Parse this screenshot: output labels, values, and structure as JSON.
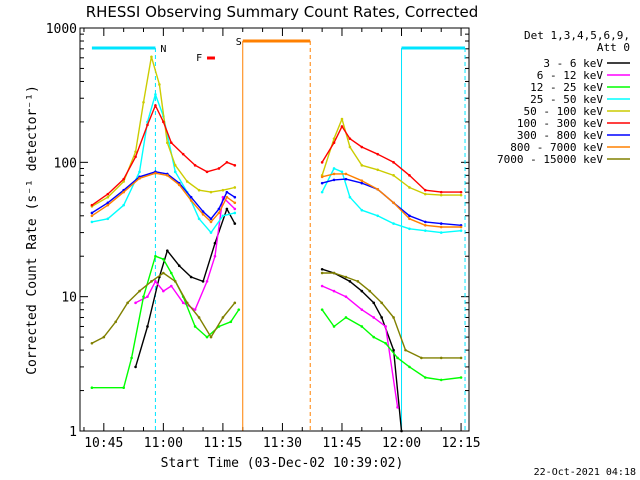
{
  "chart_data": {
    "type": "line",
    "title": "RHESSI Observing Summary Count Rates, Corrected",
    "xlabel": "Start Time (03-Dec-02 10:39:02)",
    "ylabel": "Corrected Count Rate (s⁻¹ detector⁻¹)",
    "yscale": "log",
    "ylim": [
      1,
      1000
    ],
    "xlim": [
      "10:39",
      "12:17"
    ],
    "x_ticks": [
      "10:45",
      "11:00",
      "11:15",
      "11:30",
      "11:45",
      "12:00",
      "12:15"
    ],
    "y_ticks": [
      "1",
      "10",
      "100",
      "1000"
    ],
    "legend_header": [
      "Det 1,3,4,5,6,9,",
      "Att 0"
    ],
    "legend_position": "right",
    "timestamp": "22-Oct-2021 04:18",
    "annotations": {
      "night": "N",
      "saa": "S",
      "flare": "F"
    },
    "colors": {
      "night_bar": "#00e5ff",
      "saa_bar": "#ff8000",
      "flare_mark": "#ff0000",
      "dash_cyan": "#00e5ff",
      "dash_orange": "#ff8000"
    },
    "gaps": [
      [
        "11:19",
        "11:38"
      ]
    ],
    "series": [
      {
        "name": "3 - 6 keV",
        "color": "#000000",
        "x": [
          "10:53",
          "10:56",
          "10:59",
          "11:01",
          "11:04",
          "11:07",
          "11:10",
          "11:13",
          "11:16",
          "11:18",
          "11:40",
          "11:43",
          "11:47",
          "11:50",
          "11:53",
          "11:55",
          "11:58",
          "12:00"
        ],
        "y": [
          3,
          6,
          14,
          22,
          17,
          14,
          13,
          25,
          45,
          35,
          16,
          15,
          13,
          11,
          9,
          7,
          4,
          1
        ]
      },
      {
        "name": "6 - 12 keV",
        "color": "#ff00ff",
        "x": [
          "10:53",
          "10:56",
          "10:58",
          "11:00",
          "11:02",
          "11:05",
          "11:08",
          "11:11",
          "11:13",
          "11:15",
          "11:18",
          "11:40",
          "11:43",
          "11:46",
          "11:50",
          "11:53",
          "11:56",
          "11:59"
        ],
        "y": [
          9,
          10,
          13,
          11,
          12,
          9,
          8,
          13,
          20,
          55,
          45,
          12,
          11,
          10,
          8,
          7,
          6,
          1.5
        ]
      },
      {
        "name": "12 - 25 keV",
        "color": "#00ff00",
        "x": [
          "10:42",
          "10:50",
          "10:52",
          "10:55",
          "10:58",
          "11:00",
          "11:02",
          "11:05",
          "11:08",
          "11:11",
          "11:14",
          "11:17",
          "11:19",
          "11:40",
          "11:43",
          "11:46",
          "11:50",
          "11:53",
          "11:56",
          "11:59",
          "12:02",
          "12:06",
          "12:10",
          "12:15"
        ],
        "y": [
          2.1,
          2.1,
          3.5,
          10,
          20,
          19,
          15,
          10,
          6,
          5,
          6,
          6.5,
          8,
          8,
          6,
          7,
          6,
          5,
          4.5,
          3.5,
          3,
          2.5,
          2.4,
          2.5
        ]
      },
      {
        "name": "25 - 50 keV",
        "color": "#00ffff",
        "x": [
          "10:42",
          "10:46",
          "10:50",
          "10:54",
          "10:56",
          "10:58",
          "11:00",
          "11:03",
          "11:06",
          "11:09",
          "11:12",
          "11:15",
          "11:18",
          "11:40",
          "11:43",
          "11:45",
          "11:47",
          "11:50",
          "11:54",
          "11:58",
          "12:02",
          "12:06",
          "12:10",
          "12:15"
        ],
        "y": [
          36,
          38,
          48,
          85,
          200,
          320,
          220,
          85,
          60,
          38,
          30,
          40,
          42,
          60,
          90,
          85,
          55,
          44,
          40,
          35,
          32,
          31,
          30,
          31
        ]
      },
      {
        "name": "50 - 100 keV",
        "color": "#cccc00",
        "x": [
          "10:42",
          "10:46",
          "10:50",
          "10:53",
          "10:55",
          "10:57",
          "10:59",
          "11:01",
          "11:03",
          "11:06",
          "11:09",
          "11:12",
          "11:15",
          "11:18",
          "11:40",
          "11:43",
          "11:45",
          "11:47",
          "11:50",
          "11:54",
          "11:58",
          "12:02",
          "12:06",
          "12:10",
          "12:15"
        ],
        "y": [
          47,
          55,
          72,
          120,
          280,
          610,
          380,
          140,
          95,
          72,
          62,
          60,
          62,
          65,
          80,
          150,
          210,
          130,
          95,
          88,
          80,
          65,
          58,
          57,
          57
        ]
      },
      {
        "name": "100 - 300 keV",
        "color": "#ff0000",
        "x": [
          "10:42",
          "10:46",
          "10:50",
          "10:53",
          "10:56",
          "10:58",
          "11:00",
          "11:02",
          "11:05",
          "11:08",
          "11:11",
          "11:14",
          "11:16",
          "11:18",
          "11:40",
          "11:43",
          "11:45",
          "11:47",
          "11:50",
          "11:54",
          "11:58",
          "12:02",
          "12:06",
          "12:10",
          "12:15"
        ],
        "y": [
          48,
          58,
          75,
          110,
          190,
          265,
          200,
          140,
          115,
          95,
          85,
          90,
          100,
          95,
          100,
          140,
          185,
          150,
          130,
          115,
          100,
          80,
          62,
          60,
          60
        ]
      },
      {
        "name": "300 - 800 keV",
        "color": "#0000ff",
        "x": [
          "10:42",
          "10:46",
          "10:50",
          "10:54",
          "10:58",
          "11:01",
          "11:04",
          "11:07",
          "11:10",
          "11:12",
          "11:14",
          "11:16",
          "11:18",
          "11:40",
          "11:43",
          "11:46",
          "11:50",
          "11:54",
          "11:58",
          "12:02",
          "12:06",
          "12:10",
          "12:15"
        ],
        "y": [
          42,
          50,
          62,
          78,
          85,
          82,
          70,
          55,
          43,
          38,
          45,
          60,
          55,
          70,
          74,
          75,
          70,
          63,
          50,
          40,
          36,
          35,
          34
        ]
      },
      {
        "name": "800 - 7000 keV",
        "color": "#ff8000",
        "x": [
          "10:42",
          "10:46",
          "10:50",
          "10:54",
          "10:58",
          "11:01",
          "11:04",
          "11:07",
          "11:10",
          "11:12",
          "11:14",
          "11:16",
          "11:18",
          "11:40",
          "11:43",
          "11:46",
          "11:50",
          "11:54",
          "11:58",
          "12:02",
          "12:06",
          "12:10",
          "12:15"
        ],
        "y": [
          40,
          48,
          60,
          76,
          83,
          80,
          68,
          52,
          41,
          36,
          42,
          55,
          50,
          78,
          82,
          82,
          73,
          63,
          50,
          38,
          34,
          33,
          33
        ]
      },
      {
        "name": "7000 - 15000 keV",
        "color": "#808000",
        "x": [
          "10:42",
          "10:45",
          "10:48",
          "10:51",
          "10:54",
          "10:57",
          "11:00",
          "11:03",
          "11:06",
          "11:09",
          "11:12",
          "11:15",
          "11:18",
          "11:40",
          "11:43",
          "11:46",
          "11:49",
          "11:52",
          "11:55",
          "11:58",
          "12:01",
          "12:05",
          "12:10",
          "12:15"
        ],
        "y": [
          4.5,
          5,
          6.5,
          9,
          11,
          13,
          15,
          13,
          9,
          7,
          5,
          7,
          9,
          15,
          15,
          14,
          13,
          11,
          9,
          7,
          4,
          3.5,
          3.5,
          3.5
        ]
      }
    ]
  }
}
